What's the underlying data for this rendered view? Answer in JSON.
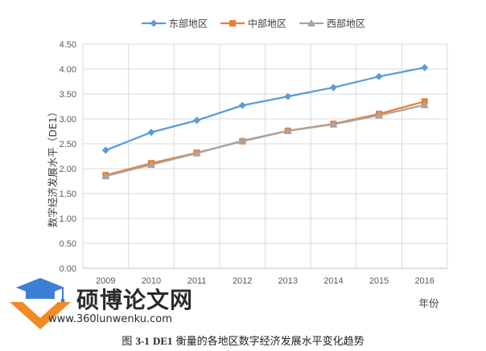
{
  "chart_data": {
    "type": "line",
    "categories": [
      "2009",
      "2010",
      "2011",
      "2012",
      "2013",
      "2014",
      "2015",
      "2016"
    ],
    "series": [
      {
        "name": "东部地区",
        "color": "#5b9bd5",
        "marker": "diamond",
        "values": [
          2.37,
          2.73,
          2.97,
          3.27,
          3.45,
          3.63,
          3.85,
          4.03
        ]
      },
      {
        "name": "中部地区",
        "color": "#ed7d31",
        "marker": "square",
        "values": [
          1.87,
          2.11,
          2.32,
          2.55,
          2.76,
          2.9,
          3.1,
          3.35
        ]
      },
      {
        "name": "西部地区",
        "color": "#a5a5a5",
        "marker": "triangle",
        "values": [
          1.85,
          2.08,
          2.31,
          2.56,
          2.76,
          2.89,
          3.07,
          3.28
        ]
      }
    ],
    "ylabel": "数字经济发展水平（DE1）",
    "xlabel": "年份",
    "ylim": [
      0,
      4.5
    ],
    "yticks": [
      "0.00",
      "0.50",
      "1.00",
      "1.50",
      "2.00",
      "2.50",
      "3.00",
      "3.50",
      "4.00",
      "4.50"
    ],
    "grid": true,
    "legend_position": "top"
  },
  "watermark": {
    "site_name": "硕博论文网",
    "url": "www.360lunwenku.com"
  },
  "caption": {
    "prefix": "图",
    "figure_number": "3-1",
    "label": "DE1",
    "text": "衡量的各地区数字经济发展水平变化趋势"
  }
}
